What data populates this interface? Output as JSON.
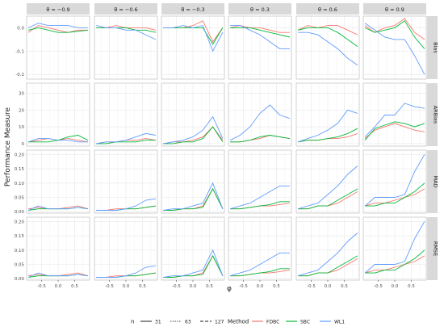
{
  "chart_data": {
    "type": "line",
    "ylabel": "Performance Measure",
    "xlabel": "φ",
    "theta_strips": [
      "θ = −0.9",
      "θ = −0.6",
      "θ = −0.3",
      "θ = 0.3",
      "θ = 0.6",
      "θ = 0.9"
    ],
    "measure_strips": [
      "Bias",
      "ARBias",
      "MAD",
      "RMSE"
    ],
    "x": [
      -0.9,
      -0.6,
      -0.3,
      0.0,
      0.3,
      0.6,
      0.9
    ],
    "x_ticks": [
      "-0.5",
      "0.0",
      "0.5"
    ],
    "y_ticks": {
      "Bias": [
        "0.0",
        "-0.1",
        "-0.2"
      ],
      "ARBias": [
        "0",
        "10",
        "20",
        "30"
      ],
      "MAD": [
        "0.00",
        "0.05",
        "0.10",
        "0.15",
        "0.20"
      ],
      "RMSE": [
        "0.00",
        "0.05",
        "0.10",
        "0.15",
        "0.20"
      ]
    },
    "ylim": {
      "Bias": [
        -0.22,
        0.05
      ],
      "ARBias": [
        -1.5,
        36
      ],
      "MAD": [
        -0.005,
        0.215
      ],
      "RMSE": [
        -0.005,
        0.215
      ]
    },
    "grid": true,
    "legend_position": "bottom",
    "legend": {
      "n_title": "n",
      "n_levels": [
        "31",
        "63",
        "127"
      ],
      "method_title": "Method",
      "methods": [
        "FDBC",
        "SBC",
        "WL1"
      ]
    },
    "colors": {
      "FDBC": "#F8766D",
      "SBC": "#00BA38",
      "WL1": "#619CFF"
    },
    "series": [
      {
        "measure": "Bias",
        "theta": -0.9,
        "method": "FDBC",
        "n": "31",
        "values": [
          -0.02,
          0.01,
          0.0,
          -0.01,
          -0.02,
          -0.01,
          -0.01
        ]
      },
      {
        "measure": "Bias",
        "theta": -0.9,
        "method": "SBC",
        "n": "31",
        "values": [
          -0.01,
          0.0,
          -0.01,
          -0.02,
          -0.02,
          -0.015,
          -0.01
        ]
      },
      {
        "measure": "Bias",
        "theta": -0.9,
        "method": "WL1",
        "n": "31",
        "values": [
          0.0,
          0.02,
          0.01,
          0.01,
          0.01,
          0.0,
          0.0
        ]
      },
      {
        "measure": "Bias",
        "theta": -0.6,
        "method": "FDBC",
        "n": "31",
        "values": [
          0.0,
          0.0,
          0.01,
          0.0,
          0.0,
          0.0,
          -0.01
        ]
      },
      {
        "measure": "Bias",
        "theta": -0.6,
        "method": "SBC",
        "n": "31",
        "values": [
          0.0,
          0.0,
          0.0,
          0.0,
          -0.01,
          -0.01,
          -0.02
        ]
      },
      {
        "measure": "Bias",
        "theta": -0.6,
        "method": "WL1",
        "n": "31",
        "values": [
          0.01,
          0.0,
          0.0,
          -0.01,
          -0.01,
          -0.03,
          -0.05
        ]
      },
      {
        "measure": "Bias",
        "theta": -0.3,
        "method": "FDBC",
        "n": "31",
        "values": [
          0.0,
          0.0,
          0.0,
          0.01,
          0.03,
          -0.06,
          0.0
        ]
      },
      {
        "measure": "Bias",
        "theta": -0.3,
        "method": "SBC",
        "n": "31",
        "values": [
          0.0,
          0.0,
          0.0,
          0.0,
          0.0,
          -0.07,
          0.0
        ]
      },
      {
        "measure": "Bias",
        "theta": -0.3,
        "method": "WL1",
        "n": "31",
        "values": [
          0.0,
          0.0,
          0.01,
          0.0,
          0.01,
          -0.1,
          -0.02
        ]
      },
      {
        "measure": "Bias",
        "theta": 0.3,
        "method": "FDBC",
        "n": "31",
        "values": [
          0.0,
          0.01,
          0.0,
          0.0,
          -0.01,
          -0.02,
          -0.02
        ]
      },
      {
        "measure": "Bias",
        "theta": 0.3,
        "method": "SBC",
        "n": "31",
        "values": [
          0.0,
          0.0,
          0.0,
          -0.01,
          -0.02,
          -0.03,
          -0.04
        ]
      },
      {
        "measure": "Bias",
        "theta": 0.3,
        "method": "WL1",
        "n": "31",
        "values": [
          0.01,
          0.01,
          -0.01,
          -0.03,
          -0.06,
          -0.09,
          -0.09
        ]
      },
      {
        "measure": "Bias",
        "theta": 0.6,
        "method": "FDBC",
        "n": "31",
        "values": [
          -0.01,
          0.01,
          0.0,
          0.01,
          0.01,
          -0.01,
          -0.03
        ]
      },
      {
        "measure": "Bias",
        "theta": 0.6,
        "method": "SBC",
        "n": "31",
        "values": [
          -0.01,
          0.0,
          0.0,
          0.0,
          -0.02,
          -0.05,
          -0.08
        ]
      },
      {
        "measure": "Bias",
        "theta": 0.6,
        "method": "WL1",
        "n": "31",
        "values": [
          -0.02,
          -0.02,
          -0.03,
          -0.06,
          -0.09,
          -0.13,
          -0.16
        ]
      },
      {
        "measure": "Bias",
        "theta": 0.9,
        "method": "FDBC",
        "n": "31",
        "values": [
          0.01,
          -0.02,
          0.0,
          0.01,
          0.04,
          -0.02,
          -0.05
        ]
      },
      {
        "measure": "Bias",
        "theta": 0.9,
        "method": "SBC",
        "n": "31",
        "values": [
          0.0,
          -0.02,
          -0.01,
          0.0,
          0.03,
          -0.04,
          -0.09
        ]
      },
      {
        "measure": "Bias",
        "theta": 0.9,
        "method": "WL1",
        "n": "31",
        "values": [
          0.02,
          -0.01,
          -0.04,
          -0.05,
          -0.05,
          -0.12,
          -0.2
        ]
      },
      {
        "measure": "ARBias",
        "theta": -0.9,
        "method": "FDBC",
        "n": "31",
        "values": [
          1,
          2,
          3,
          2,
          3,
          2,
          1
        ]
      },
      {
        "measure": "ARBias",
        "theta": -0.9,
        "method": "SBC",
        "n": "31",
        "values": [
          1,
          1,
          1,
          2,
          4,
          5,
          2
        ]
      },
      {
        "measure": "ARBias",
        "theta": -0.9,
        "method": "WL1",
        "n": "31",
        "values": [
          1,
          3,
          3,
          2,
          2,
          1,
          1
        ]
      },
      {
        "measure": "ARBias",
        "theta": -0.6,
        "method": "FDBC",
        "n": "31",
        "values": [
          0,
          1,
          1,
          2,
          2,
          3,
          2
        ]
      },
      {
        "measure": "ARBias",
        "theta": -0.6,
        "method": "SBC",
        "n": "31",
        "values": [
          0,
          0,
          1,
          1,
          1,
          2,
          2
        ]
      },
      {
        "measure": "ARBias",
        "theta": -0.6,
        "method": "WL1",
        "n": "31",
        "values": [
          0,
          1,
          1,
          2,
          4,
          6,
          5
        ]
      },
      {
        "measure": "ARBias",
        "theta": -0.3,
        "method": "FDBC",
        "n": "31",
        "values": [
          0,
          1,
          1,
          2,
          4,
          10,
          2
        ]
      },
      {
        "measure": "ARBias",
        "theta": -0.3,
        "method": "SBC",
        "n": "31",
        "values": [
          0,
          0,
          1,
          1,
          3,
          10,
          1
        ]
      },
      {
        "measure": "ARBias",
        "theta": -0.3,
        "method": "WL1",
        "n": "31",
        "values": [
          0,
          1,
          2,
          4,
          8,
          16,
          3
        ]
      },
      {
        "measure": "ARBias",
        "theta": 0.3,
        "method": "FDBC",
        "n": "31",
        "values": [
          1,
          1,
          2,
          3,
          5,
          4,
          3
        ]
      },
      {
        "measure": "ARBias",
        "theta": 0.3,
        "method": "SBC",
        "n": "31",
        "values": [
          1,
          1,
          2,
          4,
          5,
          4,
          3
        ]
      },
      {
        "measure": "ARBias",
        "theta": 0.3,
        "method": "WL1",
        "n": "31",
        "values": [
          2,
          5,
          10,
          18,
          23,
          17,
          15
        ]
      },
      {
        "measure": "ARBias",
        "theta": 0.6,
        "method": "FDBC",
        "n": "31",
        "values": [
          1,
          2,
          2,
          3,
          3,
          4,
          6
        ]
      },
      {
        "measure": "ARBias",
        "theta": 0.6,
        "method": "SBC",
        "n": "31",
        "values": [
          1,
          2,
          2,
          3,
          4,
          6,
          9
        ]
      },
      {
        "measure": "ARBias",
        "theta": 0.6,
        "method": "WL1",
        "n": "31",
        "values": [
          1,
          3,
          5,
          8,
          12,
          20,
          18
        ]
      },
      {
        "measure": "ARBias",
        "theta": 0.9,
        "method": "FDBC",
        "n": "31",
        "values": [
          3,
          8,
          10,
          12,
          10,
          8,
          7
        ]
      },
      {
        "measure": "ARBias",
        "theta": 0.9,
        "method": "SBC",
        "n": "31",
        "values": [
          2,
          9,
          11,
          13,
          12,
          10,
          12
        ]
      },
      {
        "measure": "ARBias",
        "theta": 0.9,
        "method": "WL1",
        "n": "31",
        "values": [
          4,
          10,
          17,
          17,
          24,
          22,
          21
        ]
      },
      {
        "measure": "MAD",
        "theta": -0.9,
        "method": "FDBC",
        "n": "31",
        "values": [
          0.01,
          0.015,
          0.01,
          0.01,
          0.015,
          0.02,
          0.01
        ]
      },
      {
        "measure": "MAD",
        "theta": -0.9,
        "method": "SBC",
        "n": "31",
        "values": [
          0.005,
          0.01,
          0.01,
          0.01,
          0.01,
          0.015,
          0.01
        ]
      },
      {
        "measure": "MAD",
        "theta": -0.9,
        "method": "WL1",
        "n": "31",
        "values": [
          0.005,
          0.02,
          0.01,
          0.01,
          0.01,
          0.015,
          0.01
        ]
      },
      {
        "measure": "MAD",
        "theta": -0.6,
        "method": "FDBC",
        "n": "31",
        "values": [
          0.005,
          0.005,
          0.01,
          0.01,
          0.01,
          0.015,
          0.02
        ]
      },
      {
        "measure": "MAD",
        "theta": -0.6,
        "method": "SBC",
        "n": "31",
        "values": [
          0.005,
          0.005,
          0.005,
          0.01,
          0.01,
          0.015,
          0.02
        ]
      },
      {
        "measure": "MAD",
        "theta": -0.6,
        "method": "WL1",
        "n": "31",
        "values": [
          0.005,
          0.005,
          0.005,
          0.01,
          0.02,
          0.04,
          0.045
        ]
      },
      {
        "measure": "MAD",
        "theta": -0.3,
        "method": "FDBC",
        "n": "31",
        "values": [
          0.005,
          0.005,
          0.01,
          0.01,
          0.02,
          0.08,
          0.01
        ]
      },
      {
        "measure": "MAD",
        "theta": -0.3,
        "method": "SBC",
        "n": "31",
        "values": [
          0.005,
          0.005,
          0.01,
          0.01,
          0.015,
          0.08,
          0.01
        ]
      },
      {
        "measure": "MAD",
        "theta": -0.3,
        "method": "WL1",
        "n": "31",
        "values": [
          0.005,
          0.01,
          0.01,
          0.02,
          0.03,
          0.1,
          0.01
        ]
      },
      {
        "measure": "MAD",
        "theta": 0.3,
        "method": "FDBC",
        "n": "31",
        "values": [
          0.01,
          0.01,
          0.015,
          0.02,
          0.02,
          0.025,
          0.03
        ]
      },
      {
        "measure": "MAD",
        "theta": 0.3,
        "method": "SBC",
        "n": "31",
        "values": [
          0.01,
          0.01,
          0.015,
          0.02,
          0.025,
          0.035,
          0.035
        ]
      },
      {
        "measure": "MAD",
        "theta": 0.3,
        "method": "WL1",
        "n": "31",
        "values": [
          0.01,
          0.02,
          0.03,
          0.05,
          0.07,
          0.09,
          0.09
        ]
      },
      {
        "measure": "MAD",
        "theta": 0.6,
        "method": "FDBC",
        "n": "31",
        "values": [
          0.01,
          0.01,
          0.02,
          0.02,
          0.03,
          0.05,
          0.07
        ]
      },
      {
        "measure": "MAD",
        "theta": 0.6,
        "method": "SBC",
        "n": "31",
        "values": [
          0.01,
          0.01,
          0.02,
          0.02,
          0.04,
          0.06,
          0.08
        ]
      },
      {
        "measure": "MAD",
        "theta": 0.6,
        "method": "WL1",
        "n": "31",
        "values": [
          0.01,
          0.02,
          0.03,
          0.06,
          0.09,
          0.13,
          0.16
        ]
      },
      {
        "measure": "MAD",
        "theta": 0.9,
        "method": "FDBC",
        "n": "31",
        "values": [
          0.02,
          0.03,
          0.03,
          0.04,
          0.05,
          0.06,
          0.08
        ]
      },
      {
        "measure": "MAD",
        "theta": 0.9,
        "method": "SBC",
        "n": "31",
        "values": [
          0.02,
          0.02,
          0.03,
          0.03,
          0.05,
          0.07,
          0.1
        ]
      },
      {
        "measure": "MAD",
        "theta": 0.9,
        "method": "WL1",
        "n": "31",
        "values": [
          0.02,
          0.05,
          0.05,
          0.05,
          0.06,
          0.14,
          0.2
        ]
      },
      {
        "measure": "RMSE",
        "theta": -0.9,
        "method": "FDBC",
        "n": "31",
        "values": [
          0.01,
          0.015,
          0.01,
          0.01,
          0.015,
          0.02,
          0.01
        ]
      },
      {
        "measure": "RMSE",
        "theta": -0.9,
        "method": "SBC",
        "n": "31",
        "values": [
          0.005,
          0.01,
          0.01,
          0.01,
          0.01,
          0.015,
          0.01
        ]
      },
      {
        "measure": "RMSE",
        "theta": -0.9,
        "method": "WL1",
        "n": "31",
        "values": [
          0.005,
          0.02,
          0.01,
          0.01,
          0.01,
          0.015,
          0.01
        ]
      },
      {
        "measure": "RMSE",
        "theta": -0.6,
        "method": "FDBC",
        "n": "31",
        "values": [
          0.005,
          0.005,
          0.01,
          0.01,
          0.01,
          0.015,
          0.02
        ]
      },
      {
        "measure": "RMSE",
        "theta": -0.6,
        "method": "SBC",
        "n": "31",
        "values": [
          0.005,
          0.005,
          0.005,
          0.01,
          0.01,
          0.015,
          0.02
        ]
      },
      {
        "measure": "RMSE",
        "theta": -0.6,
        "method": "WL1",
        "n": "31",
        "values": [
          0.005,
          0.005,
          0.005,
          0.01,
          0.02,
          0.04,
          0.045
        ]
      },
      {
        "measure": "RMSE",
        "theta": -0.3,
        "method": "FDBC",
        "n": "31",
        "values": [
          0.005,
          0.005,
          0.01,
          0.01,
          0.02,
          0.08,
          0.01
        ]
      },
      {
        "measure": "RMSE",
        "theta": -0.3,
        "method": "SBC",
        "n": "31",
        "values": [
          0.005,
          0.005,
          0.01,
          0.01,
          0.015,
          0.08,
          0.01
        ]
      },
      {
        "measure": "RMSE",
        "theta": -0.3,
        "method": "WL1",
        "n": "31",
        "values": [
          0.005,
          0.01,
          0.01,
          0.02,
          0.03,
          0.1,
          0.01
        ]
      },
      {
        "measure": "RMSE",
        "theta": 0.3,
        "method": "FDBC",
        "n": "31",
        "values": [
          0.01,
          0.01,
          0.015,
          0.02,
          0.02,
          0.025,
          0.03
        ]
      },
      {
        "measure": "RMSE",
        "theta": 0.3,
        "method": "SBC",
        "n": "31",
        "values": [
          0.01,
          0.01,
          0.015,
          0.02,
          0.025,
          0.035,
          0.035
        ]
      },
      {
        "measure": "RMSE",
        "theta": 0.3,
        "method": "WL1",
        "n": "31",
        "values": [
          0.01,
          0.02,
          0.03,
          0.05,
          0.07,
          0.09,
          0.09
        ]
      },
      {
        "measure": "RMSE",
        "theta": 0.6,
        "method": "FDBC",
        "n": "31",
        "values": [
          0.01,
          0.01,
          0.02,
          0.02,
          0.03,
          0.05,
          0.07
        ]
      },
      {
        "measure": "RMSE",
        "theta": 0.6,
        "method": "SBC",
        "n": "31",
        "values": [
          0.01,
          0.01,
          0.02,
          0.02,
          0.04,
          0.06,
          0.08
        ]
      },
      {
        "measure": "RMSE",
        "theta": 0.6,
        "method": "WL1",
        "n": "31",
        "values": [
          0.01,
          0.02,
          0.03,
          0.06,
          0.09,
          0.13,
          0.16
        ]
      },
      {
        "measure": "RMSE",
        "theta": 0.9,
        "method": "FDBC",
        "n": "31",
        "values": [
          0.02,
          0.03,
          0.03,
          0.04,
          0.05,
          0.06,
          0.08
        ]
      },
      {
        "measure": "RMSE",
        "theta": 0.9,
        "method": "SBC",
        "n": "31",
        "values": [
          0.02,
          0.02,
          0.03,
          0.03,
          0.05,
          0.07,
          0.1
        ]
      },
      {
        "measure": "RMSE",
        "theta": 0.9,
        "method": "WL1",
        "n": "31",
        "values": [
          0.02,
          0.05,
          0.05,
          0.05,
          0.06,
          0.14,
          0.2
        ]
      }
    ]
  }
}
